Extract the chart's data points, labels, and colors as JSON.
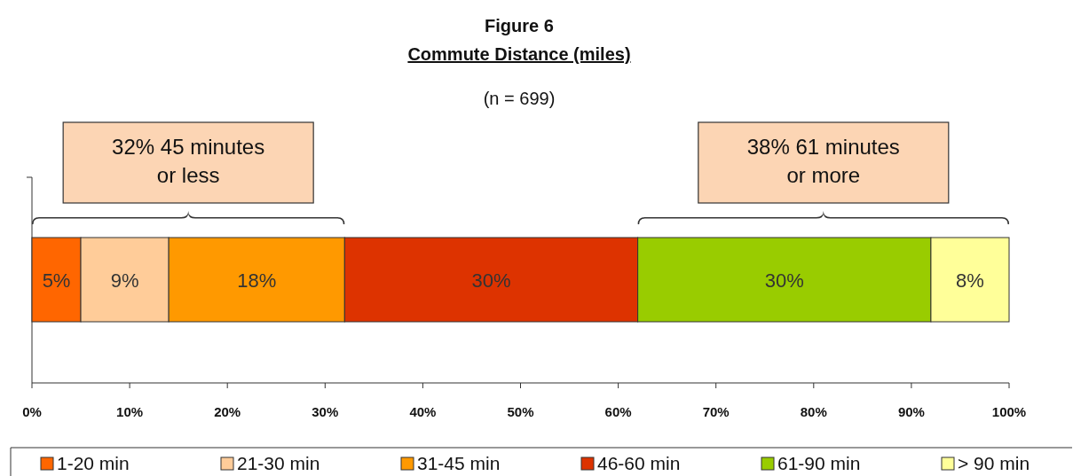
{
  "chart_data": {
    "type": "bar",
    "title": "Figure 6",
    "subtitle": "Commute Distance (miles)",
    "stacked": true,
    "orientation": "horizontal",
    "categories": [
      null
    ],
    "series": [
      {
        "name": "1-20 min",
        "color": "#ff6600",
        "values": [
          5
        ],
        "value_labels": [
          "5%"
        ]
      },
      {
        "name": "21-30 min",
        "color": "#ffcc99",
        "values": [
          9
        ],
        "value_labels": [
          "9%"
        ]
      },
      {
        "name": "31-45 min",
        "color": "#ff9900",
        "values": [
          18
        ],
        "value_labels": [
          "18%"
        ]
      },
      {
        "name": "46-60 min",
        "color": "#dd3300",
        "values": [
          30
        ],
        "value_labels": [
          "30%"
        ]
      },
      {
        "name": "61-90 min",
        "color": "#99cc00",
        "values": [
          30
        ],
        "value_labels": [
          "30%"
        ]
      },
      {
        "name": "> 90 min",
        "color": "#ffff99",
        "values": [
          8
        ],
        "value_labels": [
          "8%"
        ]
      }
    ],
    "xlim": [
      0,
      100
    ],
    "xticks": [
      {
        "value": 0,
        "label": "0%"
      },
      {
        "value": 10,
        "label": "10%"
      },
      {
        "value": 20,
        "label": "20%"
      },
      {
        "value": 30,
        "label": "30%"
      },
      {
        "value": 40,
        "label": "40%"
      },
      {
        "value": 50,
        "label": "50%"
      },
      {
        "value": 60,
        "label": "60%"
      },
      {
        "value": 70,
        "label": "70%"
      },
      {
        "value": 80,
        "label": "80%"
      },
      {
        "value": 90,
        "label": "90%"
      },
      {
        "value": 100,
        "label": "100%"
      }
    ],
    "tick_labels": "x",
    "legend": "bottom",
    "grid": false,
    "annotations": [
      "(n = 699)",
      "32% 45 minutes or less",
      "38% 61 minutes or more"
    ]
  }
}
